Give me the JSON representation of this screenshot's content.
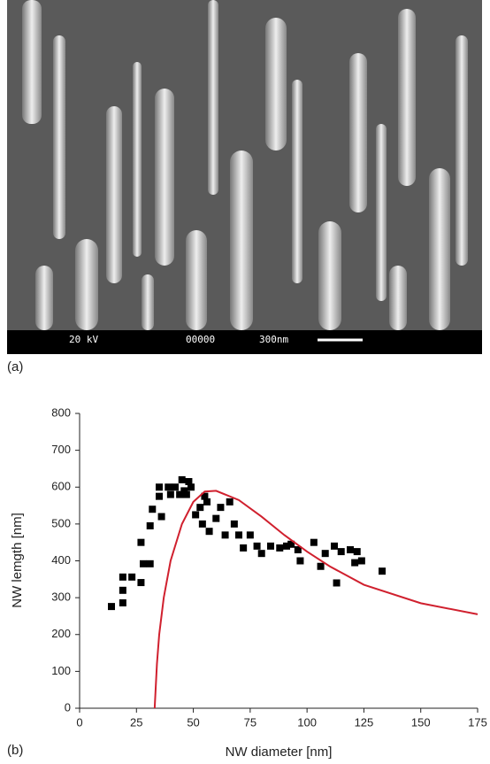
{
  "image": {
    "voltage": "20 kV",
    "code": "00000",
    "scale": "300nm"
  },
  "panel_labels": [
    "(a)",
    "(b)"
  ],
  "chart_data": {
    "type": "scatter",
    "xlabel": "NW diameter [nm]",
    "ylabel": "NW lemgth [nm]",
    "xlim": [
      0,
      175
    ],
    "xticks": [
      0,
      25,
      50,
      75,
      100,
      125,
      150,
      175
    ],
    "ylim": [
      0,
      800
    ],
    "yticks": [
      0,
      100,
      200,
      300,
      400,
      500,
      600,
      700,
      800
    ],
    "series": [
      {
        "type": "scatter",
        "color": "#000000",
        "x": [
          14,
          19,
          19,
          19,
          23,
          27,
          27,
          28,
          31,
          31,
          32,
          35,
          35,
          36,
          39,
          40,
          42,
          44,
          45,
          46,
          47,
          48,
          49,
          51,
          53,
          54,
          55,
          56,
          57,
          60,
          62,
          64,
          66,
          68,
          70,
          72,
          75,
          78,
          80,
          84,
          88,
          91,
          93,
          96,
          97,
          103,
          106,
          108,
          112,
          113,
          115,
          119,
          121,
          122,
          124,
          133
        ],
        "values": [
          276,
          286,
          320,
          356,
          356,
          341,
          450,
          392,
          392,
          495,
          540,
          575,
          600,
          520,
          600,
          580,
          600,
          580,
          620,
          590,
          580,
          615,
          600,
          525,
          545,
          500,
          575,
          560,
          480,
          515,
          545,
          470,
          560,
          500,
          470,
          435,
          470,
          440,
          420,
          440,
          435,
          440,
          445,
          430,
          400,
          450,
          385,
          420,
          440,
          340,
          425,
          430,
          395,
          425,
          400,
          372
        ]
      },
      {
        "type": "line",
        "color": "#d0202e",
        "x": [
          33,
          34,
          35,
          37,
          40,
          45,
          50,
          55,
          60,
          70,
          80,
          90,
          100,
          110,
          125,
          150,
          175
        ],
        "values": [
          0,
          120,
          200,
          300,
          400,
          500,
          560,
          588,
          590,
          565,
          520,
          470,
          425,
          385,
          335,
          285,
          255
        ]
      }
    ]
  }
}
